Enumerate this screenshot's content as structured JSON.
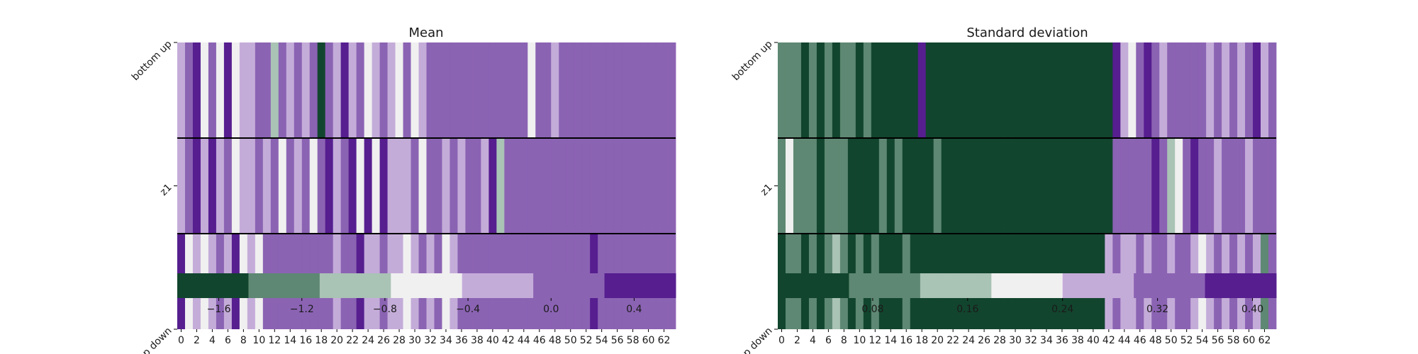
{
  "palette": [
    "#12452e",
    "#5e8873",
    "#a9c3b5",
    "#f0f0f0",
    "#c4acd9",
    "#8b63b3",
    "#561e8f"
  ],
  "chart_data": [
    {
      "type": "heatmap",
      "title": "Mean",
      "rows": [
        "bottom up",
        "z1",
        "top down"
      ],
      "x_ticks": [
        0,
        2,
        4,
        6,
        8,
        10,
        12,
        14,
        16,
        18,
        20,
        22,
        24,
        26,
        28,
        30,
        32,
        34,
        36,
        38,
        40,
        42,
        44,
        46,
        48,
        50,
        52,
        54,
        56,
        58,
        60,
        62
      ],
      "colorbar": {
        "ticks": [
          "−1.6",
          "−1.2",
          "−0.8",
          "−0.4",
          "0.0",
          "0.4"
        ],
        "range": [
          -1.8,
          0.6
        ],
        "bins": 7
      },
      "values": [
        [
          4,
          5,
          6,
          3,
          5,
          3,
          6,
          3,
          4,
          4,
          5,
          5,
          2,
          5,
          4,
          5,
          4,
          5,
          0,
          5,
          4,
          6,
          4,
          5,
          3,
          4,
          5,
          4,
          3,
          5,
          3,
          4,
          5,
          5,
          5,
          5,
          5,
          5,
          5,
          5,
          5,
          5,
          5,
          5,
          5,
          3,
          5,
          5,
          4,
          5,
          5,
          5,
          5,
          5,
          5,
          5,
          5,
          5,
          5,
          5,
          5,
          5,
          5,
          5
        ],
        [
          4,
          5,
          6,
          4,
          6,
          4,
          5,
          3,
          4,
          4,
          5,
          4,
          5,
          3,
          5,
          4,
          5,
          3,
          5,
          6,
          4,
          5,
          6,
          3,
          6,
          3,
          6,
          4,
          4,
          4,
          5,
          3,
          5,
          5,
          4,
          5,
          4,
          5,
          5,
          4,
          6,
          2,
          5,
          5,
          5,
          5,
          5,
          5,
          5,
          5,
          5,
          5,
          5,
          5,
          5,
          5,
          5,
          5,
          5,
          5,
          5,
          5,
          5,
          5
        ],
        [
          6,
          3,
          4,
          3,
          4,
          5,
          4,
          6,
          3,
          4,
          3,
          5,
          5,
          5,
          5,
          5,
          5,
          5,
          5,
          5,
          4,
          5,
          5,
          6,
          4,
          4,
          5,
          4,
          4,
          3,
          4,
          5,
          4,
          5,
          3,
          4,
          5,
          5,
          5,
          5,
          5,
          5,
          5,
          5,
          5,
          5,
          5,
          5,
          5,
          5,
          5,
          5,
          5,
          6,
          5,
          5,
          5,
          5,
          5,
          5,
          5,
          5,
          5,
          5
        ]
      ]
    },
    {
      "type": "heatmap",
      "title": "Standard deviation",
      "rows": [
        "bottom up",
        "z1",
        "top down"
      ],
      "x_ticks": [
        0,
        2,
        4,
        6,
        8,
        10,
        12,
        14,
        16,
        18,
        20,
        22,
        24,
        26,
        28,
        30,
        32,
        34,
        36,
        38,
        40,
        42,
        44,
        46,
        48,
        50,
        52,
        54,
        56,
        58,
        60,
        62
      ],
      "colorbar": {
        "ticks": [
          "0.08",
          "0.16",
          "0.24",
          "0.32",
          "0.40"
        ],
        "range": [
          0.0,
          0.42
        ],
        "bins": 7
      },
      "values": [
        [
          1,
          1,
          1,
          0,
          1,
          0,
          1,
          0,
          1,
          1,
          0,
          1,
          0,
          0,
          0,
          0,
          0,
          0,
          6,
          0,
          0,
          0,
          0,
          0,
          0,
          0,
          0,
          0,
          0,
          0,
          0,
          0,
          0,
          0,
          0,
          0,
          0,
          0,
          0,
          0,
          0,
          0,
          0,
          6,
          4,
          3,
          5,
          6,
          5,
          4,
          5,
          5,
          5,
          5,
          5,
          4,
          5,
          4,
          5,
          4,
          5,
          6,
          4,
          5
        ],
        [
          1,
          3,
          1,
          1,
          1,
          0,
          1,
          1,
          1,
          0,
          0,
          0,
          0,
          1,
          0,
          1,
          0,
          0,
          0,
          0,
          1,
          0,
          0,
          0,
          0,
          0,
          0,
          0,
          0,
          0,
          0,
          0,
          0,
          0,
          0,
          0,
          0,
          0,
          0,
          0,
          0,
          0,
          0,
          5,
          5,
          5,
          5,
          5,
          6,
          5,
          2,
          3,
          5,
          6,
          5,
          5,
          4,
          5,
          5,
          5,
          4,
          5,
          5,
          5
        ],
        [
          0,
          1,
          1,
          0,
          1,
          0,
          1,
          2,
          1,
          0,
          1,
          0,
          1,
          0,
          0,
          0,
          1,
          0,
          0,
          0,
          0,
          0,
          0,
          0,
          0,
          0,
          0,
          0,
          0,
          0,
          0,
          0,
          0,
          0,
          0,
          0,
          0,
          0,
          0,
          0,
          0,
          0,
          4,
          5,
          4,
          4,
          5,
          4,
          5,
          5,
          4,
          5,
          5,
          4,
          3,
          4,
          5,
          4,
          5,
          4,
          5,
          4,
          1,
          5
        ]
      ]
    }
  ]
}
